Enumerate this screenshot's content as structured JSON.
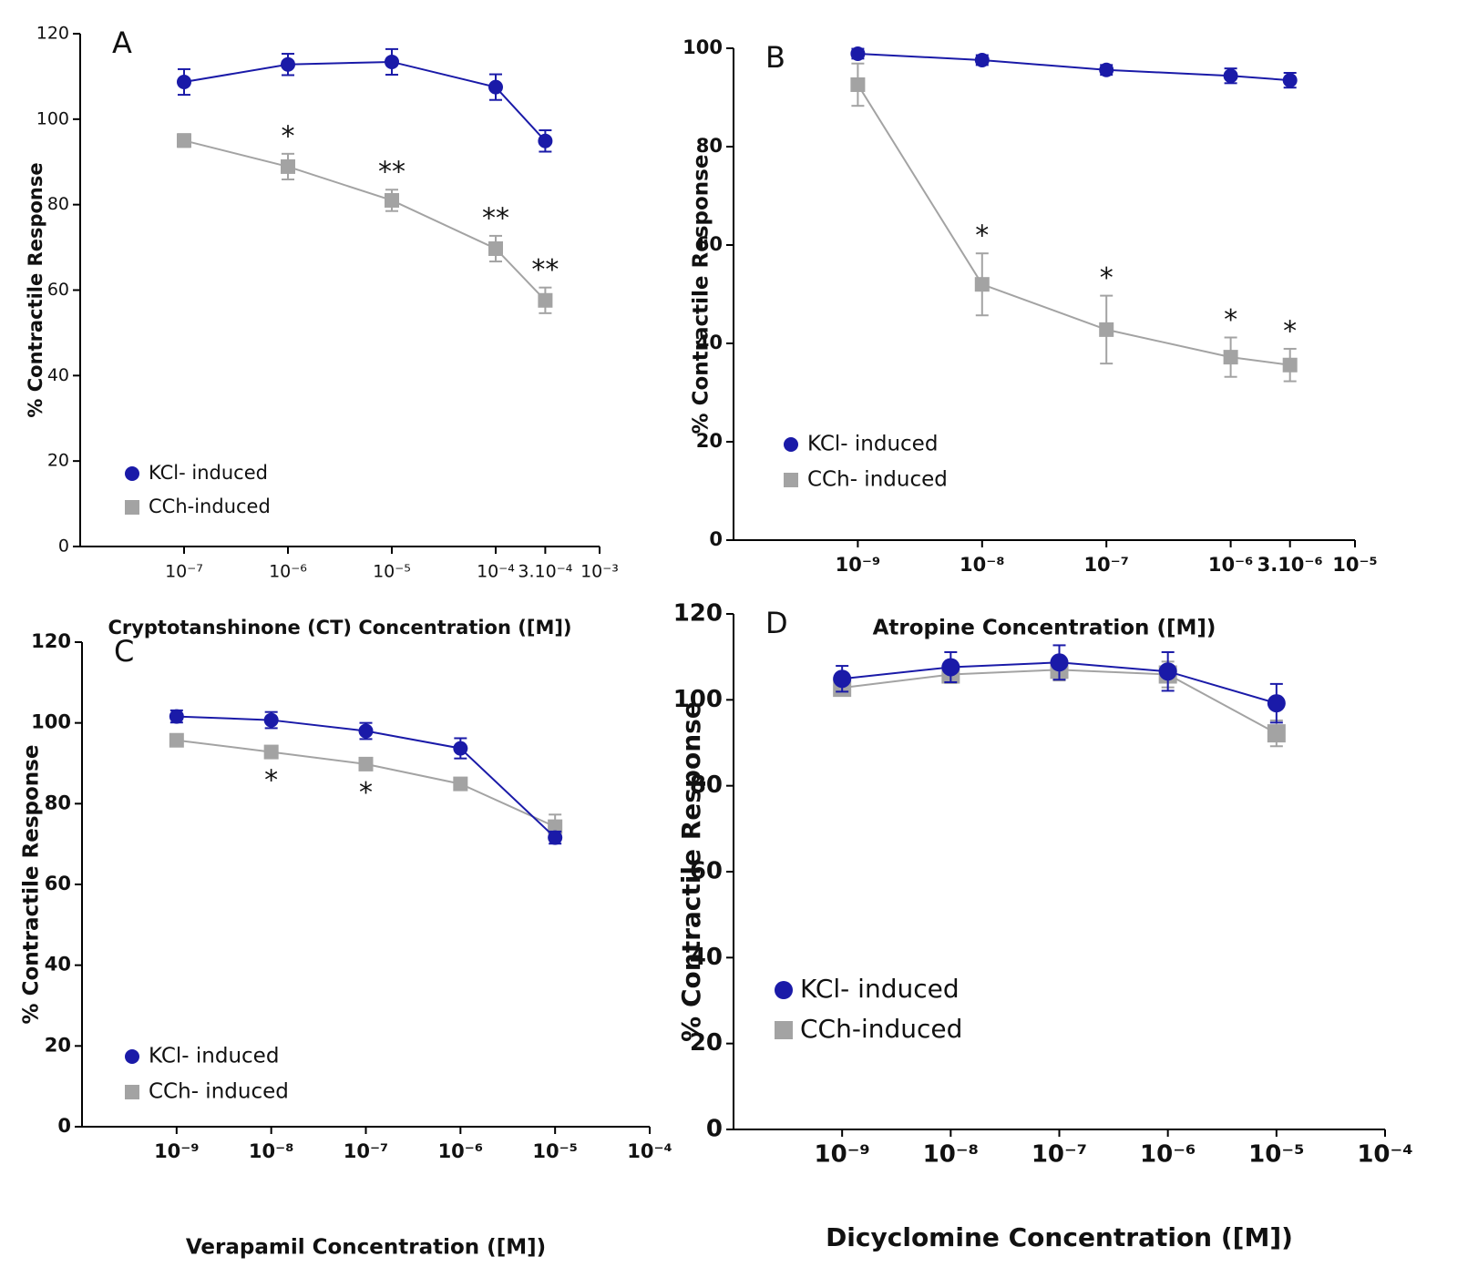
{
  "chart_data": [
    {
      "type": "line",
      "panel_label": "A",
      "x_label": "Cryptotanshinone (CT) Concentration ([M])",
      "y_label": "% Contractile Response",
      "xscale": "log",
      "xlim": [
        1e-08,
        0.001
      ],
      "ylim": [
        0,
        120
      ],
      "xticks": [
        {
          "value": 1e-07,
          "label": "10⁻⁷"
        },
        {
          "value": 1e-06,
          "label": "10⁻⁶"
        },
        {
          "value": 1e-05,
          "label": "10⁻⁵"
        },
        {
          "value": 0.0001,
          "label": "10⁻⁴"
        },
        {
          "value": 0.0003,
          "label": "3.10⁻⁴"
        },
        {
          "value": 0.001,
          "label": "10⁻³"
        }
      ],
      "yticks": [
        0,
        20,
        40,
        60,
        80,
        100,
        120
      ],
      "x": [
        1e-07,
        1e-06,
        1e-05,
        0.0001,
        0.0003
      ],
      "series": [
        {
          "name": "KCl- induced",
          "color": "#1a1aa8",
          "marker": "circle",
          "values": [
            108.7,
            112.8,
            113.4,
            107.5,
            94.9
          ],
          "errors": [
            3,
            2.5,
            3,
            3,
            2.5
          ]
        },
        {
          "name": "CCh-induced",
          "color": "#a3a3a3",
          "marker": "square",
          "values": [
            95,
            88.9,
            81,
            69.7,
            57.6
          ],
          "errors": [
            1.5,
            3,
            2.5,
            3,
            3
          ]
        }
      ],
      "annotations": [
        {
          "x": 1e-06,
          "text": "*"
        },
        {
          "x": 1e-05,
          "text": "**"
        },
        {
          "x": 0.0001,
          "text": "**"
        },
        {
          "x": 0.0003,
          "text": "**"
        }
      ],
      "annotation_position": "above",
      "legend": "lower left"
    },
    {
      "type": "line",
      "panel_label": "B",
      "x_label": "Atropine Concentration ([M])",
      "y_label": "% Contractile Response",
      "xscale": "log",
      "xlim": [
        1e-10,
        1e-05
      ],
      "ylim": [
        0,
        100
      ],
      "xticks": [
        {
          "value": 1e-09,
          "label": "10⁻⁹"
        },
        {
          "value": 1e-08,
          "label": "10⁻⁸"
        },
        {
          "value": 1e-07,
          "label": "10⁻⁷"
        },
        {
          "value": 1e-06,
          "label": "10⁻⁶"
        },
        {
          "value": 3e-06,
          "label": "3.10⁻⁶"
        },
        {
          "value": 1e-05,
          "label": "10⁻⁵"
        }
      ],
      "yticks": [
        0,
        20,
        40,
        60,
        80,
        100
      ],
      "x": [
        1e-09,
        1e-08,
        1e-07,
        1e-06,
        3e-06
      ],
      "series": [
        {
          "name": "KCl- induced",
          "color": "#1a1aa8",
          "marker": "circle",
          "values": [
            98.9,
            97.6,
            95.6,
            94.4,
            93.5
          ],
          "errors": [
            1,
            1,
            1,
            1.5,
            1.5
          ]
        },
        {
          "name": "CCh- induced",
          "color": "#a3a3a3",
          "marker": "square",
          "values": [
            92.6,
            52,
            42.8,
            37.2,
            35.6
          ],
          "errors": [
            4.3,
            6.3,
            6.9,
            4,
            3.3
          ]
        }
      ],
      "annotations": [
        {
          "x": 1e-08,
          "text": "*"
        },
        {
          "x": 1e-07,
          "text": "*"
        },
        {
          "x": 1e-06,
          "text": "*"
        },
        {
          "x": 3e-06,
          "text": "*"
        }
      ],
      "annotation_position": "above",
      "legend": "lower left"
    },
    {
      "type": "line",
      "panel_label": "C",
      "x_label": "Verapamil Concentration ([M])",
      "y_label": "% Contractile Response",
      "xscale": "log",
      "xlim": [
        1e-10,
        0.0001
      ],
      "ylim": [
        0,
        120
      ],
      "xticks": [
        {
          "value": 1e-09,
          "label": "10⁻⁹"
        },
        {
          "value": 1e-08,
          "label": "10⁻⁸"
        },
        {
          "value": 1e-07,
          "label": "10⁻⁷"
        },
        {
          "value": 1e-06,
          "label": "10⁻⁶"
        },
        {
          "value": 1e-05,
          "label": "10⁻⁵"
        },
        {
          "value": 0.0001,
          "label": "10⁻⁴"
        }
      ],
      "yticks": [
        0,
        20,
        40,
        60,
        80,
        100,
        120
      ],
      "x": [
        1e-09,
        1e-08,
        1e-07,
        1e-06,
        1e-05
      ],
      "series": [
        {
          "name": "KCl- induced",
          "color": "#1a1aa8",
          "marker": "circle",
          "values": [
            101.6,
            100.7,
            98,
            93.7,
            71.6
          ],
          "errors": [
            1.5,
            2,
            2,
            2.5,
            1.5
          ]
        },
        {
          "name": "CCh- induced",
          "color": "#a3a3a3",
          "marker": "square",
          "values": [
            95.7,
            92.8,
            89.8,
            84.9,
            74.3
          ],
          "errors": [
            1.5,
            1.5,
            1.5,
            1.5,
            3
          ]
        }
      ],
      "annotations": [
        {
          "x": 1e-08,
          "text": "*"
        },
        {
          "x": 1e-07,
          "text": "*"
        }
      ],
      "annotation_position": "below",
      "legend": "lower left"
    },
    {
      "type": "line",
      "panel_label": "D",
      "x_label": "Dicyclomine Concentration ([M])",
      "y_label": "% Contractile Response",
      "xscale": "log",
      "xlim": [
        1e-10,
        0.0001
      ],
      "ylim": [
        0,
        120
      ],
      "xticks": [
        {
          "value": 1e-09,
          "label": "10⁻⁹"
        },
        {
          "value": 1e-08,
          "label": "10⁻⁸"
        },
        {
          "value": 1e-07,
          "label": "10⁻⁷"
        },
        {
          "value": 1e-06,
          "label": "10⁻⁶"
        },
        {
          "value": 1e-05,
          "label": "10⁻⁵"
        },
        {
          "value": 0.0001,
          "label": "10⁻⁴"
        }
      ],
      "yticks": [
        0,
        20,
        40,
        60,
        80,
        100,
        120
      ],
      "x": [
        1e-09,
        1e-08,
        1e-07,
        1e-06,
        1e-05
      ],
      "series": [
        {
          "name": "KCl- induced",
          "color": "#1a1aa8",
          "marker": "circle",
          "values": [
            104.9,
            107.6,
            108.7,
            106.6,
            99.2
          ],
          "errors": [
            3,
            3.5,
            4,
            4.5,
            4.5
          ]
        },
        {
          "name": "CCh-induced",
          "color": "#a3a3a3",
          "marker": "square",
          "values": [
            102.8,
            105.9,
            107,
            105.9,
            92.2
          ],
          "errors": [
            1.5,
            2,
            2.5,
            3,
            3
          ]
        }
      ],
      "annotations": [],
      "annotation_position": "above",
      "legend": "lower left"
    }
  ]
}
